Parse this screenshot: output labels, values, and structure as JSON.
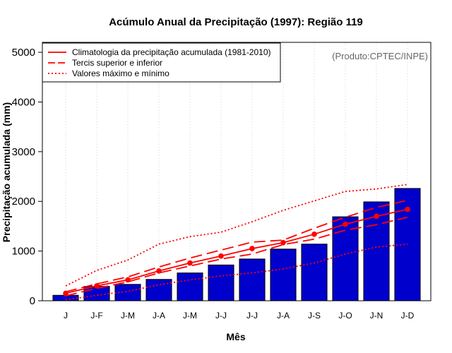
{
  "chart_data": {
    "type": "bar",
    "title": "Acúmulo Anual da Precipitação (1997): Região 119",
    "xlabel": "Mês",
    "ylabel": "Precipitação acumulada (mm)",
    "credit": "(Produto:CPTEC/INPE)",
    "ylim": [
      0,
      5200
    ],
    "yticks": [
      0,
      1000,
      2000,
      3000,
      4000,
      5000
    ],
    "categories": [
      "J",
      "J-F",
      "J-M",
      "J-A",
      "J-M",
      "J-J",
      "J-J",
      "J-A",
      "J-S",
      "J-O",
      "J-N",
      "J-D"
    ],
    "values": [
      110,
      290,
      330,
      430,
      560,
      720,
      840,
      1040,
      1140,
      1690,
      1990,
      2260
    ],
    "series": [
      {
        "name": "Climatologia da precipitação acumulada (1981-2010)",
        "style": "solid-markers",
        "values": [
          150,
          300,
          420,
          600,
          760,
          900,
          1050,
          1170,
          1340,
          1540,
          1700,
          1840
        ]
      },
      {
        "name": "Tercil superior",
        "style": "dashed",
        "values": [
          180,
          340,
          480,
          680,
          860,
          1020,
          1180,
          1220,
          1460,
          1680,
          1880,
          2020
        ]
      },
      {
        "name": "Tercil inferior",
        "style": "dashed",
        "values": [
          100,
          250,
          380,
          560,
          700,
          840,
          940,
          1130,
          1240,
          1420,
          1530,
          1680
        ]
      },
      {
        "name": "Valor máximo",
        "style": "dotted",
        "values": [
          300,
          610,
          820,
          1140,
          1290,
          1380,
          1590,
          1820,
          2010,
          2200,
          2250,
          2340
        ]
      },
      {
        "name": "Valor mínimo",
        "style": "dotted",
        "values": [
          20,
          110,
          190,
          320,
          420,
          500,
          560,
          640,
          760,
          940,
          1080,
          1140
        ]
      }
    ],
    "legend": {
      "position": "top-left",
      "entries": [
        {
          "label": "Climatologia da precipitação acumulada (1981-2010)",
          "style": "solid"
        },
        {
          "label": "Tercis superior e inferior",
          "style": "dashed"
        },
        {
          "label": "Valores máximo e mínimo",
          "style": "dotted"
        }
      ]
    },
    "colors": {
      "bar": "#0000cc",
      "line": "#ff0000",
      "grid": "#d3d3d3"
    },
    "grid": true
  }
}
